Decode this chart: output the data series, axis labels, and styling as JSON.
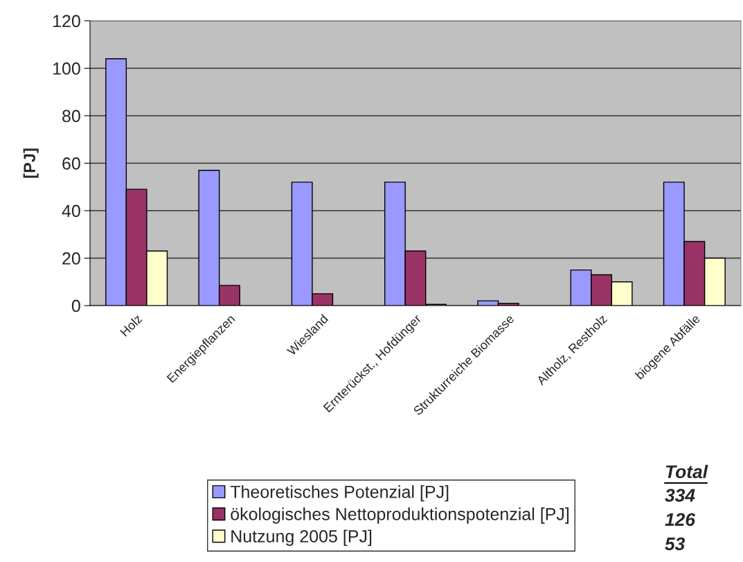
{
  "chart_data": {
    "type": "bar",
    "ylabel": "[PJ]",
    "categories": [
      "Holz",
      "Energiepflanzen",
      "Wiesland",
      "Ernterückst., Hofdünger",
      "Strukturreiche Biomasse",
      "Altholz, Restholz",
      "biogene Abfälle"
    ],
    "series": [
      {
        "name": "Theoretisches Potenzial [PJ]",
        "color": "#9999ff",
        "values": [
          104,
          57,
          52,
          52,
          2,
          15,
          52
        ]
      },
      {
        "name": "ökologisches Nettoproduktionspotenzial [PJ]",
        "color": "#993366",
        "values": [
          49,
          8.5,
          5,
          23,
          1,
          13,
          27
        ]
      },
      {
        "name": "Nutzung 2005 [PJ]",
        "color": "#ffffcc",
        "values": [
          23,
          null,
          null,
          0.5,
          null,
          10,
          20
        ]
      }
    ],
    "ylim": [
      0,
      120
    ],
    "yticks": [
      0,
      20,
      40,
      60,
      80,
      100,
      120
    ],
    "grid": "y",
    "legend": "bottom",
    "annotations": [
      "Total",
      "334",
      "126",
      "53"
    ]
  }
}
